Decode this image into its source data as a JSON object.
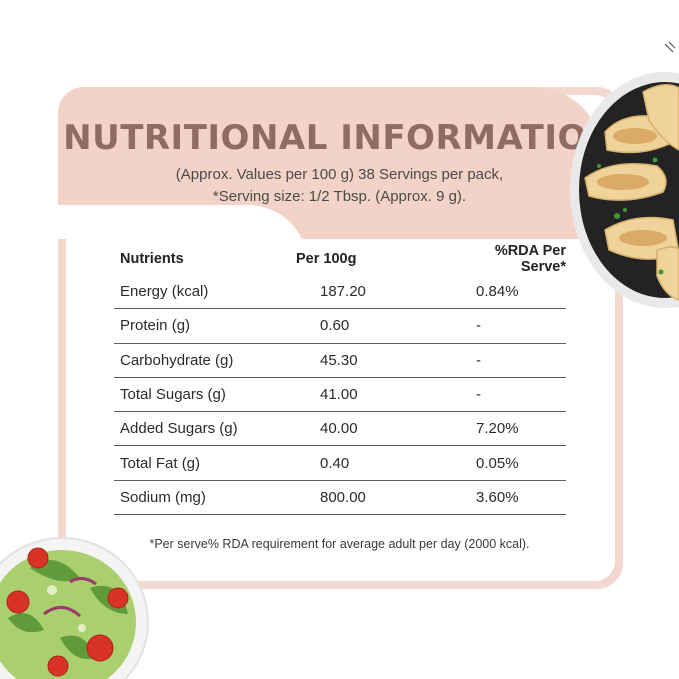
{
  "title": "NUTRITIONAL INFORMATION",
  "subtitle_line1": "(Approx. Values per 100 g) 38 Servings per pack,",
  "subtitle_line2": "*Serving size: 1/2 Tbsp. (Approx. 9 g).",
  "table": {
    "headers": [
      "Nutrients",
      "Per 100g",
      "%RDA Per Serve*"
    ],
    "rows": [
      [
        "Energy (kcal)",
        "187.20",
        "0.84%"
      ],
      [
        "Protein (g)",
        "0.60",
        "-"
      ],
      [
        "Carbohydrate (g)",
        "45.30",
        "-"
      ],
      [
        "Total Sugars (g)",
        "41.00",
        "-"
      ],
      [
        "Added Sugars (g)",
        "40.00",
        "7.20%"
      ],
      [
        "Total Fat (g)",
        "0.40",
        "0.05%"
      ],
      [
        "Sodium (mg)",
        "800.00",
        "3.60%"
      ]
    ]
  },
  "footnote": "*Per serve% RDA requirement for average adult per day (2000 kcal).",
  "colors": {
    "accent_title": "#8f6b61",
    "header_bg": "#f3d3c7",
    "card_border": "#f3d8cf"
  },
  "images": {
    "top_right": "dumplings-plate-image",
    "bottom_left": "salad-bowl-image"
  }
}
